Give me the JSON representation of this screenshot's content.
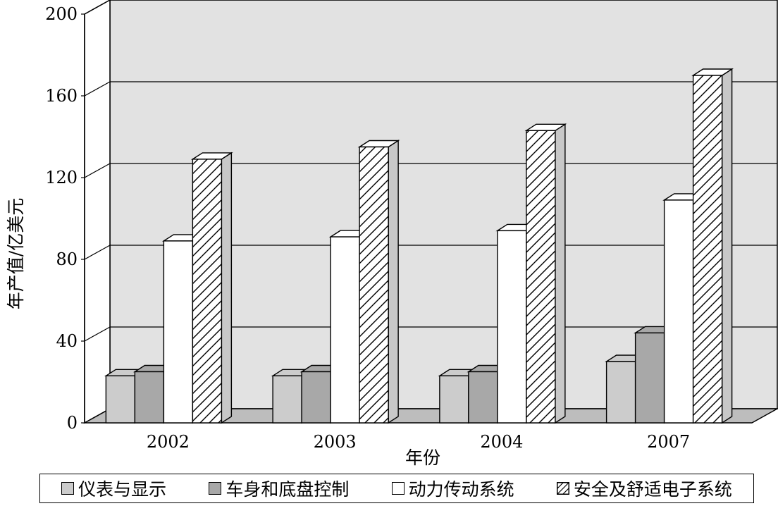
{
  "chart_data": {
    "type": "bar",
    "xlabel": "年份",
    "ylabel": "年产值/亿美元",
    "ylim": [
      0,
      200
    ],
    "yticks": [
      0,
      40,
      80,
      120,
      160,
      200
    ],
    "categories": [
      "2002",
      "2003",
      "2004",
      "2007"
    ],
    "grid": true,
    "legend_position": "bottom",
    "series": [
      {
        "name": "仪表与显示",
        "values": [
          23,
          23,
          23,
          30
        ],
        "color": "#cccccc",
        "pattern": "solid"
      },
      {
        "name": "车身和底盘控制",
        "values": [
          25,
          25,
          25,
          44
        ],
        "color": "#a8a8a8",
        "pattern": "solid"
      },
      {
        "name": "动力传动系统",
        "values": [
          89,
          91,
          94,
          109
        ],
        "color": "#ffffff",
        "pattern": "solid"
      },
      {
        "name": "安全及舒适电子系统",
        "values": [
          129,
          135,
          143,
          170
        ],
        "color": "#ffffff",
        "pattern": "hatch"
      }
    ]
  }
}
